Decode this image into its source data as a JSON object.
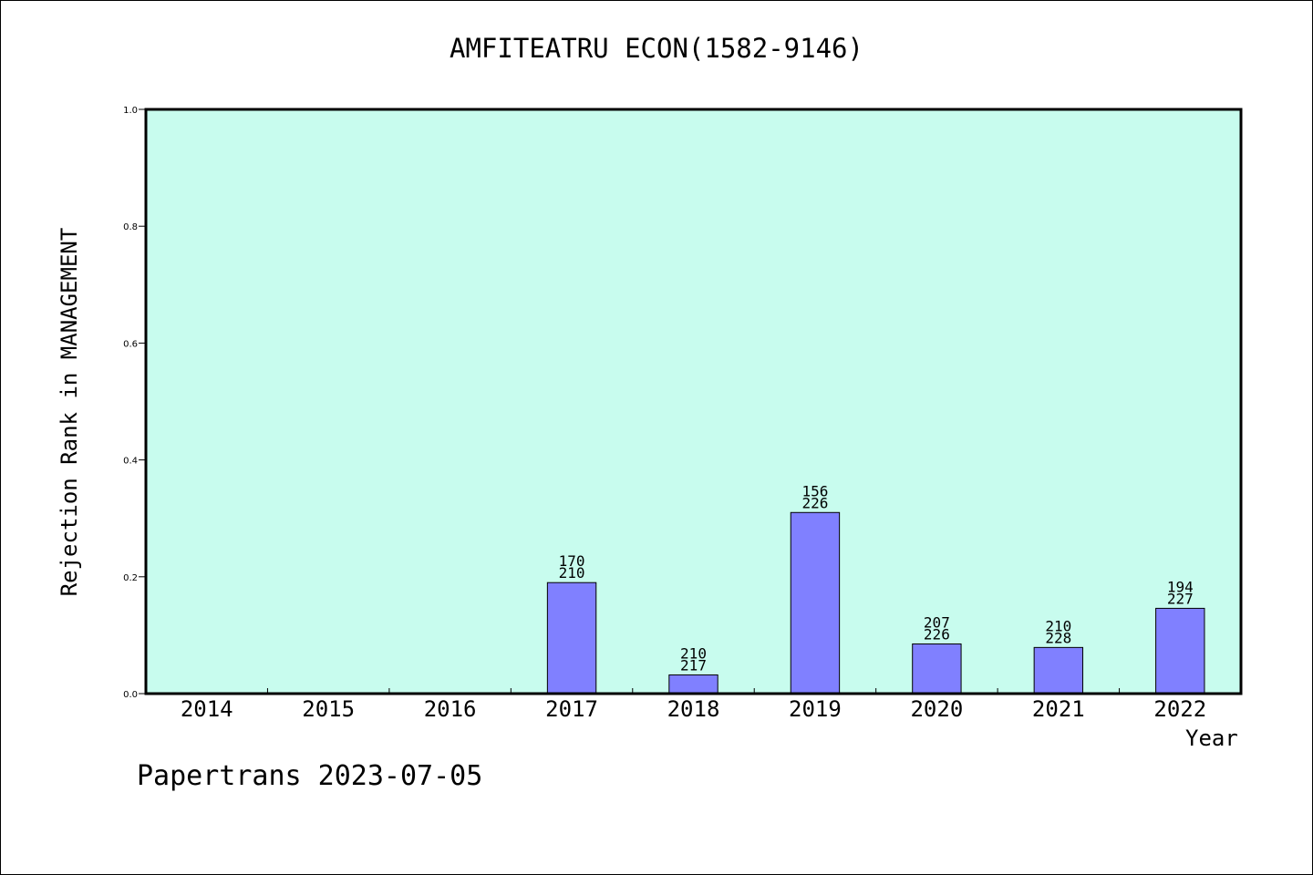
{
  "chart_data": {
    "type": "bar",
    "title": "AMFITEATRU ECON(1582-9146)",
    "xlabel": "Year",
    "ylabel": "Rejection Rank in MANAGEMENT",
    "ylim": [
      0,
      1.0
    ],
    "yticks": [
      "0.0",
      "0.2",
      "0.4",
      "0.6",
      "0.8",
      "1.0"
    ],
    "categories": [
      "2014",
      "2015",
      "2016",
      "2017",
      "2018",
      "2019",
      "2020",
      "2021",
      "2022"
    ],
    "values": [
      0,
      0,
      0,
      0.19,
      0.032,
      0.31,
      0.085,
      0.079,
      0.146
    ],
    "bar_labels": [
      null,
      null,
      null,
      [
        "170",
        "210"
      ],
      [
        "210",
        "217"
      ],
      [
        "156",
        "226"
      ],
      [
        "207",
        "226"
      ],
      [
        "210",
        "228"
      ],
      [
        "194",
        "227"
      ]
    ],
    "grid": false,
    "colors": {
      "plot_background": "#c8fcee",
      "bar_fill": "#8080ff",
      "bar_stroke": "#000000"
    }
  },
  "footer": {
    "credit": "Papertrans 2023-07-05"
  }
}
